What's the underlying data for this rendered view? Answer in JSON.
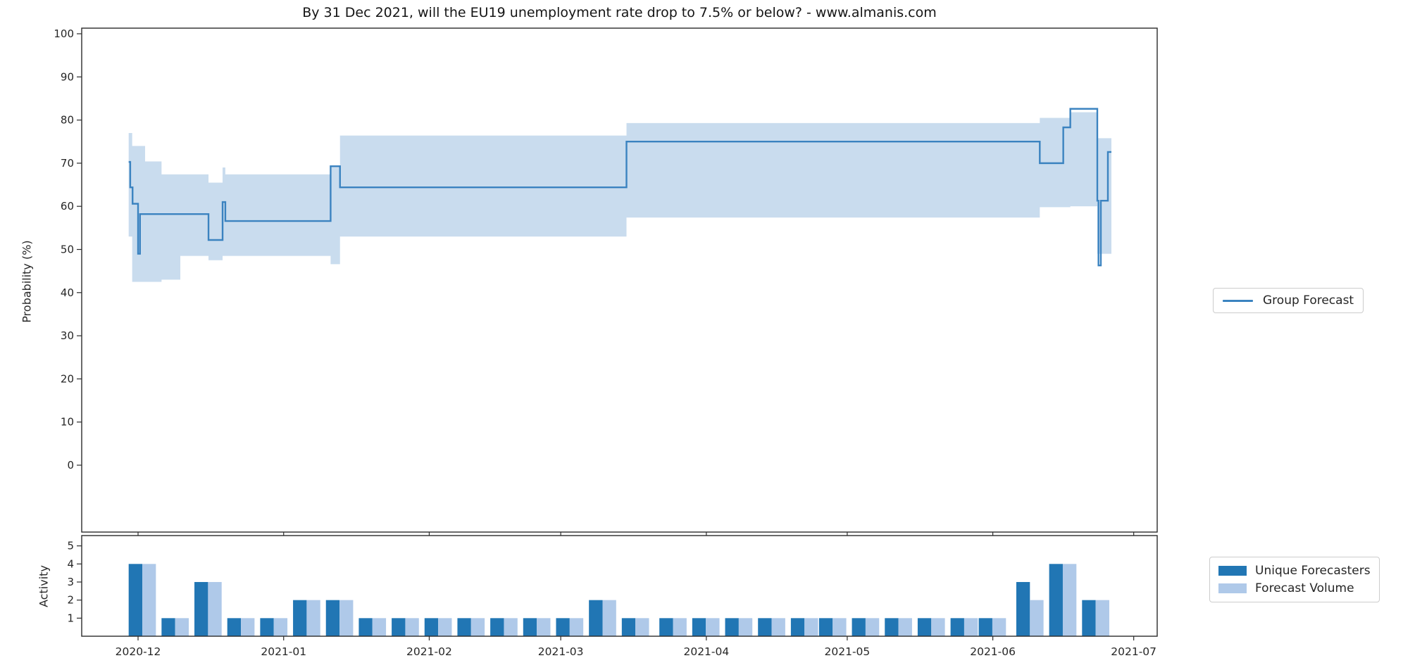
{
  "colors": {
    "line": "#3b83c0",
    "band": "#c9dcee",
    "bar_dark": "#2176b4",
    "bar_light": "#afc9e9",
    "frame": "#2b2b2b",
    "text": "#262626",
    "legend_border": "#cccccc",
    "background": "#ffffff"
  },
  "chart_data": [
    {
      "type": "line",
      "title": "By 31 Dec 2021, will the EU19 unemployment rate drop to 7.5% or below? - www.almanis.com",
      "ylabel": "Probability (%)",
      "ylim": [
        -15.5,
        101.3
      ],
      "yticks": [
        0,
        10,
        20,
        30,
        40,
        50,
        60,
        70,
        80,
        90,
        100
      ],
      "x_domain": [
        "2020-11-19T00:00",
        "2021-07-06T00:00"
      ],
      "xticks": [
        {
          "date": "2020-12-01T00:00",
          "label": "2020-12"
        },
        {
          "date": "2021-01-01T00:00",
          "label": "2021-01"
        },
        {
          "date": "2021-02-01T00:00",
          "label": "2021-02"
        },
        {
          "date": "2021-03-01T00:00",
          "label": "2021-03"
        },
        {
          "date": "2021-04-01T00:00",
          "label": "2021-04"
        },
        {
          "date": "2021-05-01T00:00",
          "label": "2021-05"
        },
        {
          "date": "2021-06-01T00:00",
          "label": "2021-06"
        },
        {
          "date": "2021-07-01T00:00",
          "label": "2021-07"
        }
      ],
      "legend": [
        "Group Forecast"
      ],
      "grid": false,
      "legend_position": "right",
      "series": [
        {
          "name": "Group Forecast",
          "style": "step-after",
          "end": "2021-06-26T06:00",
          "points": [
            {
              "date": "2020-11-29T00:00",
              "value": 70.3
            },
            {
              "date": "2020-11-29T08:00",
              "value": 64.4
            },
            {
              "date": "2020-11-29T20:00",
              "value": 60.6
            },
            {
              "date": "2020-12-01T00:00",
              "value": 49.0
            },
            {
              "date": "2020-12-01T10:00",
              "value": 58.2
            },
            {
              "date": "2020-12-16T00:00",
              "value": 52.2
            },
            {
              "date": "2020-12-19T00:00",
              "value": 61.0
            },
            {
              "date": "2020-12-19T14:00",
              "value": 56.6
            },
            {
              "date": "2021-01-11T00:00",
              "value": 69.3
            },
            {
              "date": "2021-01-13T00:00",
              "value": 64.4
            },
            {
              "date": "2021-03-15T00:00",
              "value": 75.0
            },
            {
              "date": "2021-06-11T00:00",
              "value": 70.0
            },
            {
              "date": "2021-06-16T00:00",
              "value": 78.3
            },
            {
              "date": "2021-06-17T12:00",
              "value": 82.6
            },
            {
              "date": "2021-06-23T06:00",
              "value": 61.3
            },
            {
              "date": "2021-06-23T12:00",
              "value": 46.3
            },
            {
              "date": "2021-06-24T00:00",
              "value": 61.3
            },
            {
              "date": "2021-06-25T12:00",
              "value": 72.6
            }
          ]
        }
      ],
      "band": {
        "name": "confidence-interval",
        "points": [
          {
            "date": "2020-11-29T00:00",
            "lo": 53.0,
            "hi": 77.0
          },
          {
            "date": "2020-11-29T18:00",
            "lo": 42.5,
            "hi": 74.0
          },
          {
            "date": "2020-12-02T12:00",
            "lo": 42.5,
            "hi": 70.4
          },
          {
            "date": "2020-12-06T00:00",
            "lo": 43.0,
            "hi": 67.4
          },
          {
            "date": "2020-12-10T00:00",
            "lo": 48.5,
            "hi": 67.4
          },
          {
            "date": "2020-12-16T00:00",
            "lo": 47.5,
            "hi": 65.5
          },
          {
            "date": "2020-12-19T00:00",
            "lo": 48.5,
            "hi": 69.0
          },
          {
            "date": "2020-12-19T14:00",
            "lo": 48.5,
            "hi": 67.4
          },
          {
            "date": "2021-01-11T00:00",
            "lo": 46.6,
            "hi": 69.5
          },
          {
            "date": "2021-01-13T00:00",
            "lo": 53.0,
            "hi": 76.4
          },
          {
            "date": "2021-03-15T00:00",
            "lo": 57.4,
            "hi": 79.3
          },
          {
            "date": "2021-06-11T00:00",
            "lo": 59.8,
            "hi": 80.5
          },
          {
            "date": "2021-06-17T12:00",
            "lo": 60.0,
            "hi": 81.8
          },
          {
            "date": "2021-06-23T06:00",
            "lo": 49.0,
            "hi": 75.8
          }
        ]
      }
    },
    {
      "type": "bar",
      "ylabel": "Activity",
      "ylim": [
        0,
        5.57
      ],
      "yticks": [
        1,
        2,
        3,
        4,
        5
      ],
      "legend": [
        "Unique Forecasters",
        "Forecast Volume"
      ],
      "bar_width_days": 2.9,
      "week_dates": [
        "2020-11-29T00:00",
        "2020-12-06T00:00",
        "2020-12-13T00:00",
        "2020-12-20T00:00",
        "2020-12-27T00:00",
        "2021-01-03T00:00",
        "2021-01-10T00:00",
        "2021-01-17T00:00",
        "2021-01-24T00:00",
        "2021-01-31T00:00",
        "2021-02-07T00:00",
        "2021-02-14T00:00",
        "2021-02-21T00:00",
        "2021-02-28T00:00",
        "2021-03-07T00:00",
        "2021-03-14T00:00",
        "2021-03-22T00:00",
        "2021-03-29T00:00",
        "2021-04-05T00:00",
        "2021-04-12T00:00",
        "2021-04-19T00:00",
        "2021-04-25T00:00",
        "2021-05-02T00:00",
        "2021-05-09T00:00",
        "2021-05-16T00:00",
        "2021-05-23T00:00",
        "2021-05-29T00:00",
        "2021-06-06T00:00",
        "2021-06-13T00:00",
        "2021-06-20T00:00"
      ],
      "series": [
        {
          "name": "Unique Forecasters",
          "color_key": "bar_dark",
          "values": [
            4,
            1,
            3,
            1,
            1,
            2,
            2,
            1,
            1,
            1,
            1,
            1,
            1,
            1,
            2,
            1,
            1,
            1,
            1,
            1,
            1,
            1,
            1,
            1,
            1,
            1,
            1,
            3,
            4,
            2
          ]
        },
        {
          "name": "Forecast Volume",
          "color_key": "bar_light",
          "values": [
            4,
            1,
            3,
            1,
            1,
            2,
            2,
            1,
            1,
            1,
            1,
            1,
            1,
            1,
            2,
            1,
            1,
            1,
            1,
            1,
            1,
            1,
            1,
            1,
            1,
            1,
            1,
            2,
            4,
            2
          ]
        }
      ]
    }
  ]
}
